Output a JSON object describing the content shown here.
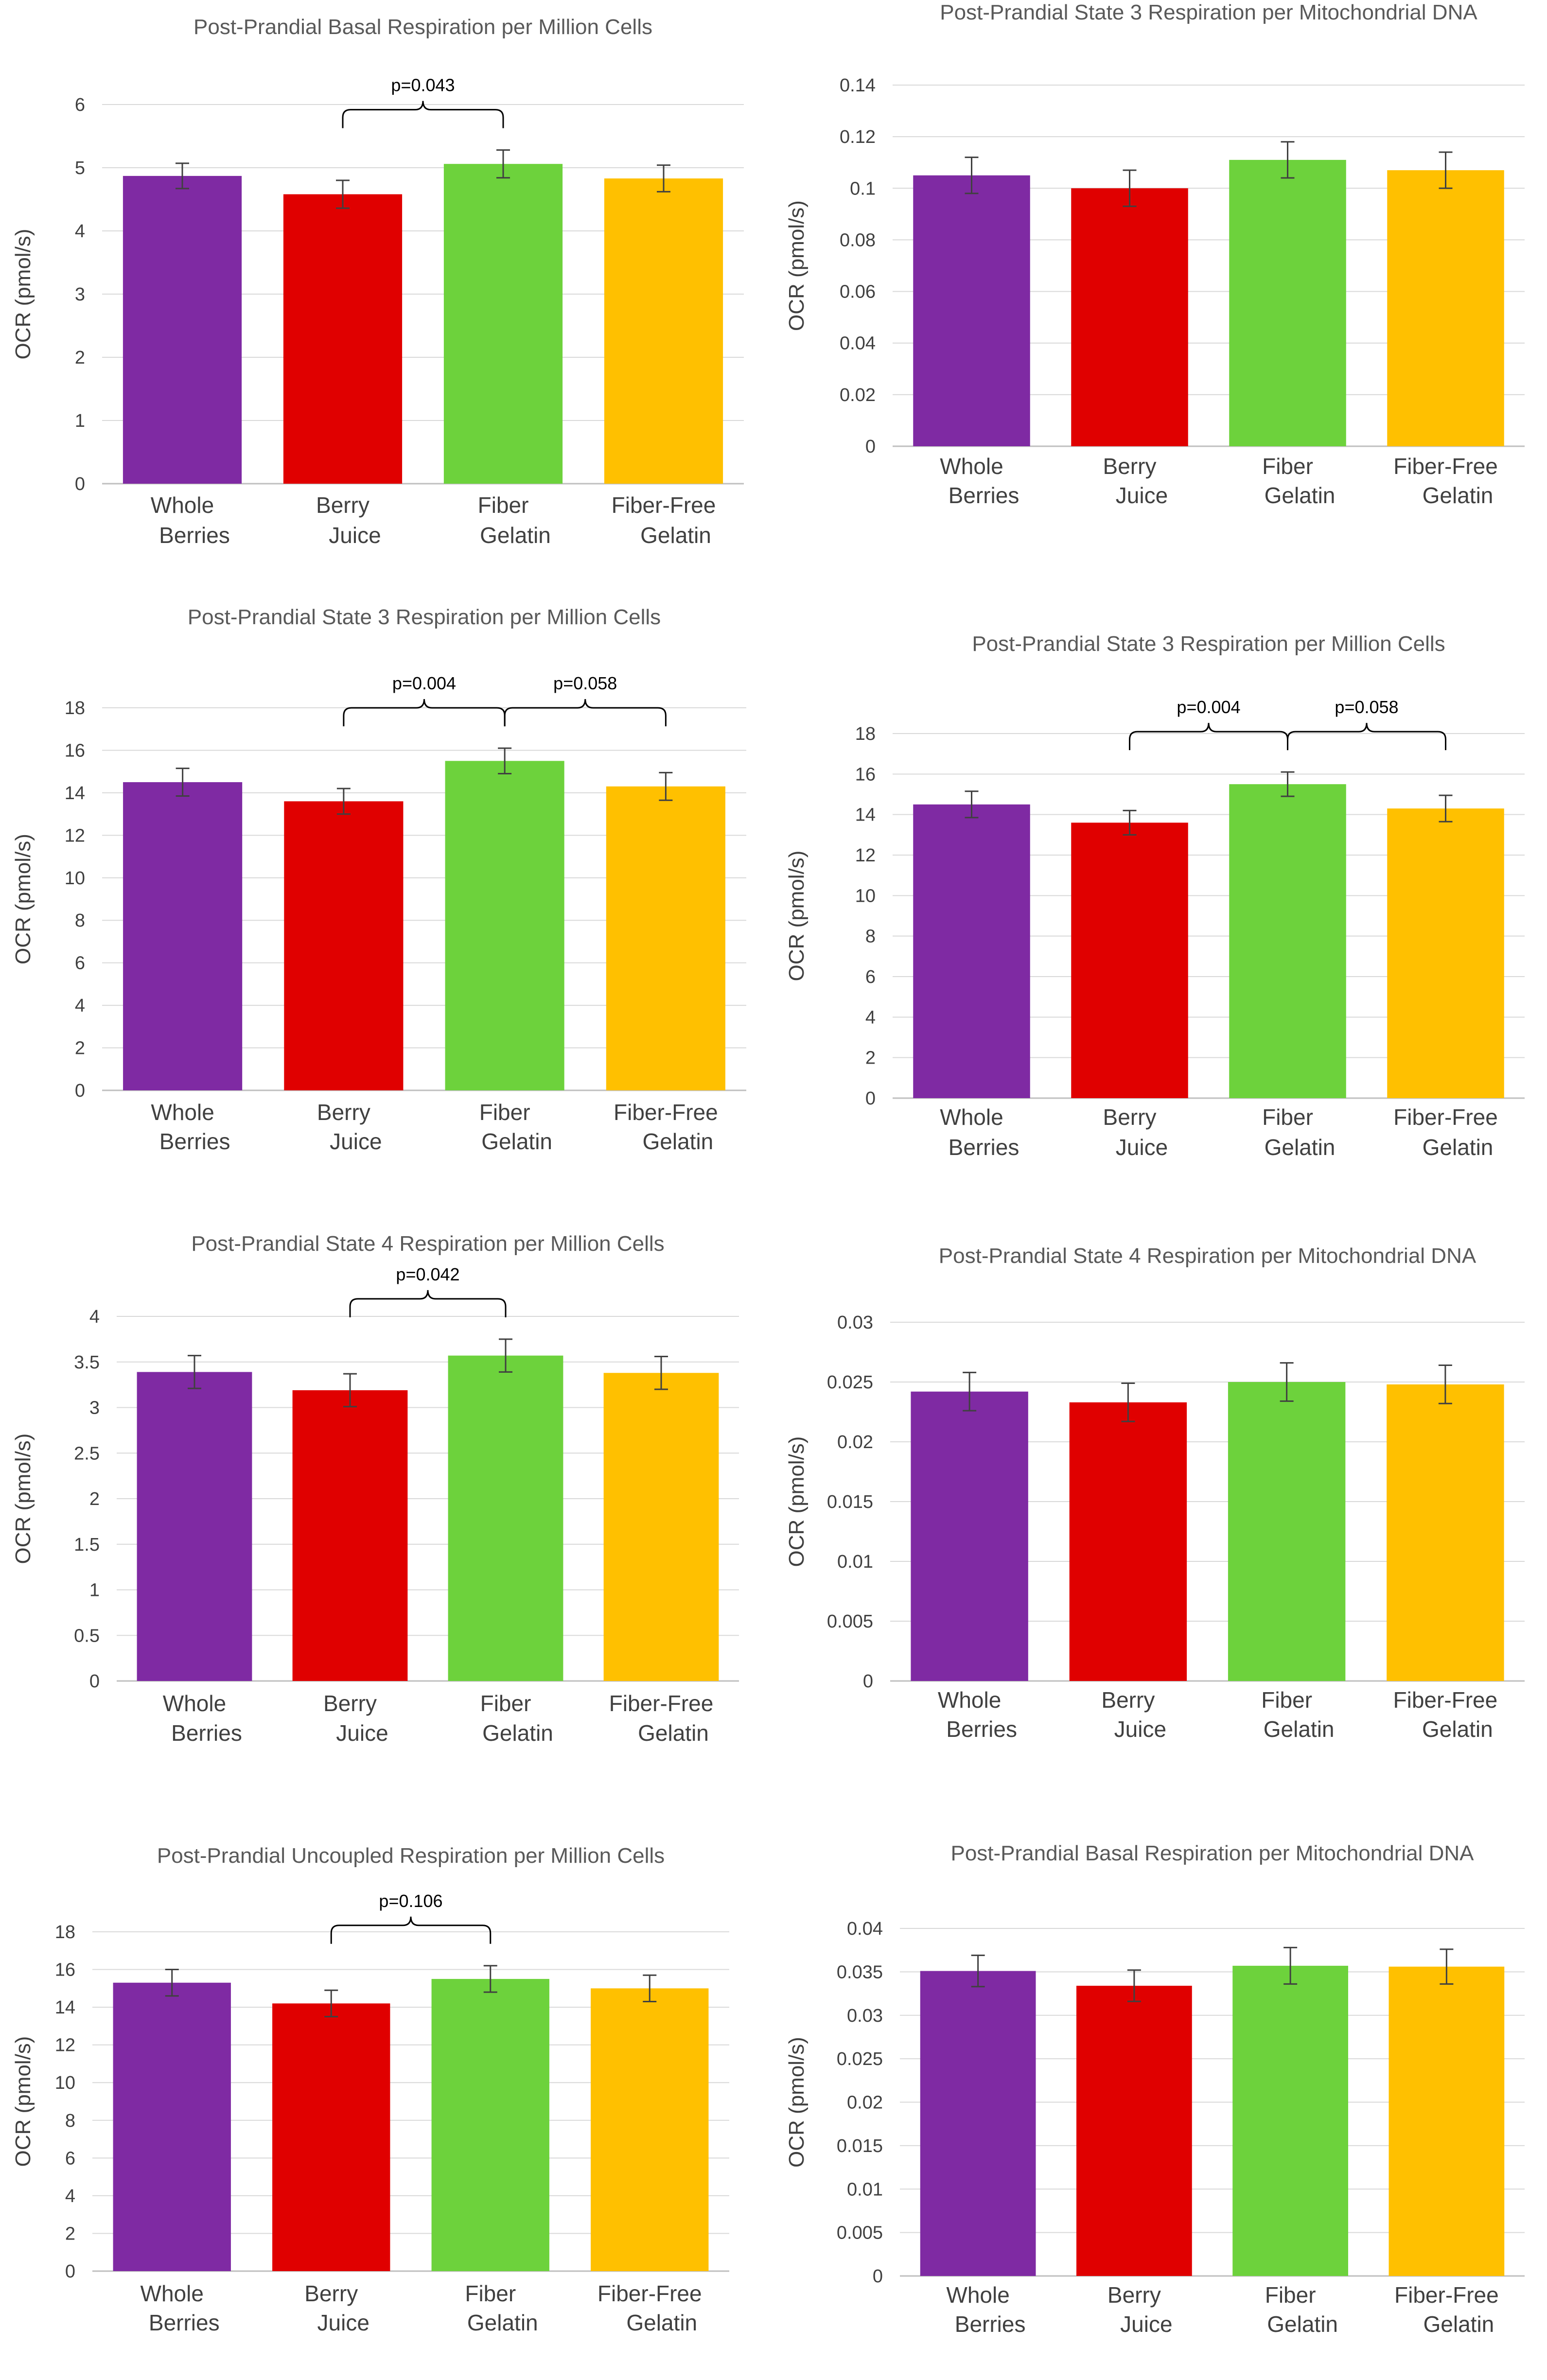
{
  "figure": {
    "categories": [
      [
        "Whole",
        "Berries"
      ],
      [
        "Berry",
        "Juice"
      ],
      [
        "Fiber",
        "Gelatin"
      ],
      [
        "Fiber-Free",
        "Gelatin"
      ]
    ],
    "colors": [
      "#7f2aa3",
      "#e00000",
      "#6dd23c",
      "#ffc000"
    ]
  },
  "chart_data": [
    {
      "type": "bar",
      "title": "Post-Prandial Basal Respiration per Million Cells",
      "ylabel": "OCR (pmol/s)",
      "categories": [
        "Whole Berries",
        "Berry Juice",
        "Fiber Gelatin",
        "Fiber-Free Gelatin"
      ],
      "values": [
        4.87,
        4.58,
        5.06,
        4.83
      ],
      "errors": [
        0.2,
        0.22,
        0.22,
        0.21
      ],
      "ylim": [
        0,
        6
      ],
      "yticks": [
        0,
        1,
        2,
        3,
        4,
        5,
        6
      ],
      "yticklabels": [
        "0",
        "1",
        "2",
        "3",
        "4",
        "5",
        "6"
      ],
      "comparisons": [
        {
          "from": 1,
          "to": 2,
          "label": "p=0.043"
        }
      ]
    },
    {
      "type": "bar",
      "title": "Post-Prandial State 3 Respiration per Mitochondrial DNA",
      "ylabel": "OCR (pmol/s)",
      "categories": [
        "Whole Berries",
        "Berry Juice",
        "Fiber Gelatin",
        "Fiber-Free Gelatin"
      ],
      "values": [
        0.105,
        0.1,
        0.111,
        0.107
      ],
      "errors": [
        0.007,
        0.007,
        0.007,
        0.007
      ],
      "ylim": [
        0,
        0.14
      ],
      "yticks": [
        0,
        0.02,
        0.04,
        0.06,
        0.08,
        0.1,
        0.12,
        0.14
      ],
      "yticklabels": [
        "0",
        "0.02",
        "0.04",
        "0.06",
        "0.08",
        "0.1",
        "0.12",
        "0.14"
      ],
      "comparisons": []
    },
    {
      "type": "bar",
      "title": "Post-Prandial State 3 Respiration per Million Cells",
      "ylabel": "OCR (pmol/s)",
      "categories": [
        "Whole Berries",
        "Berry Juice",
        "Fiber Gelatin",
        "Fiber-Free Gelatin"
      ],
      "values": [
        14.5,
        13.6,
        15.5,
        14.3
      ],
      "errors": [
        0.65,
        0.6,
        0.6,
        0.65
      ],
      "ylim": [
        0,
        18
      ],
      "yticks": [
        0,
        2,
        4,
        6,
        8,
        10,
        12,
        14,
        16,
        18
      ],
      "yticklabels": [
        "0",
        "2",
        "4",
        "6",
        "8",
        "10",
        "12",
        "14",
        "16",
        "18"
      ],
      "comparisons": [
        {
          "from": 1,
          "to": 2,
          "label": "p=0.004"
        },
        {
          "from": 2,
          "to": 3,
          "label": "p=0.058"
        }
      ]
    },
    {
      "type": "bar",
      "title": "Post-Prandial State 3 Respiration per Million Cells",
      "ylabel": "OCR (pmol/s)",
      "categories": [
        "Whole Berries",
        "Berry Juice",
        "Fiber Gelatin",
        "Fiber-Free Gelatin"
      ],
      "values": [
        14.5,
        13.6,
        15.5,
        14.3
      ],
      "errors": [
        0.65,
        0.6,
        0.6,
        0.65
      ],
      "ylim": [
        0,
        18
      ],
      "yticks": [
        0,
        2,
        4,
        6,
        8,
        10,
        12,
        14,
        16,
        18
      ],
      "yticklabels": [
        "0",
        "2",
        "4",
        "6",
        "8",
        "10",
        "12",
        "14",
        "16",
        "18"
      ],
      "comparisons": [
        {
          "from": 1,
          "to": 2,
          "label": "p=0.004"
        },
        {
          "from": 2,
          "to": 3,
          "label": "p=0.058"
        }
      ]
    },
    {
      "type": "bar",
      "title": "Post-Prandial State 4 Respiration per Million Cells",
      "ylabel": "OCR (pmol/s)",
      "categories": [
        "Whole Berries",
        "Berry Juice",
        "Fiber Gelatin",
        "Fiber-Free Gelatin"
      ],
      "values": [
        3.39,
        3.19,
        3.57,
        3.38
      ],
      "errors": [
        0.18,
        0.18,
        0.18,
        0.18
      ],
      "ylim": [
        0,
        4
      ],
      "yticks": [
        0,
        0.5,
        1,
        1.5,
        2,
        2.5,
        3,
        3.5,
        4
      ],
      "yticklabels": [
        "0",
        "0.5",
        "1",
        "1.5",
        "2",
        "2.5",
        "3",
        "3.5",
        "4"
      ],
      "comparisons": [
        {
          "from": 1,
          "to": 2,
          "label": "p=0.042"
        }
      ]
    },
    {
      "type": "bar",
      "title": "Post-Prandial State 4 Respiration per Mitochondrial DNA",
      "ylabel": "OCR (pmol/s)",
      "categories": [
        "Whole Berries",
        "Berry Juice",
        "Fiber Gelatin",
        "Fiber-Free Gelatin"
      ],
      "values": [
        0.0242,
        0.0233,
        0.025,
        0.0248
      ],
      "errors": [
        0.0016,
        0.0016,
        0.0016,
        0.0016
      ],
      "ylim": [
        0,
        0.03
      ],
      "yticks": [
        0,
        0.005,
        0.01,
        0.015,
        0.02,
        0.025,
        0.03
      ],
      "yticklabels": [
        "0",
        "0.005",
        "0.01",
        "0.015",
        "0.02",
        "0.025",
        "0.03"
      ],
      "comparisons": []
    },
    {
      "type": "bar",
      "title": "Post-Prandial Uncoupled Respiration per Million Cells",
      "ylabel": "OCR (pmol/s)",
      "categories": [
        "Whole Berries",
        "Berry Juice",
        "Fiber Gelatin",
        "Fiber-Free Gelatin"
      ],
      "values": [
        15.3,
        14.2,
        15.5,
        15.0
      ],
      "errors": [
        0.7,
        0.7,
        0.7,
        0.7
      ],
      "ylim": [
        0,
        18
      ],
      "yticks": [
        0,
        2,
        4,
        6,
        8,
        10,
        12,
        14,
        16,
        18
      ],
      "yticklabels": [
        "0",
        "2",
        "4",
        "6",
        "8",
        "10",
        "12",
        "14",
        "16",
        "18"
      ],
      "comparisons": [
        {
          "from": 1,
          "to": 2,
          "label": "p=0.106"
        }
      ]
    },
    {
      "type": "bar",
      "title": "Post-Prandial Basal Respiration per Mitochondrial DNA",
      "ylabel": "OCR (pmol/s)",
      "categories": [
        "Whole Berries",
        "Berry Juice",
        "Fiber Gelatin",
        "Fiber-Free Gelatin"
      ],
      "values": [
        0.0351,
        0.0334,
        0.0357,
        0.0356
      ],
      "errors": [
        0.0018,
        0.0018,
        0.0021,
        0.002
      ],
      "ylim": [
        0,
        0.04
      ],
      "yticks": [
        0,
        0.005,
        0.01,
        0.015,
        0.02,
        0.025,
        0.03,
        0.035,
        0.04
      ],
      "yticklabels": [
        "0",
        "0.005",
        "0.01",
        "0.015",
        "0.02",
        "0.025",
        "0.03",
        "0.035",
        "0.04"
      ],
      "comparisons": []
    }
  ]
}
